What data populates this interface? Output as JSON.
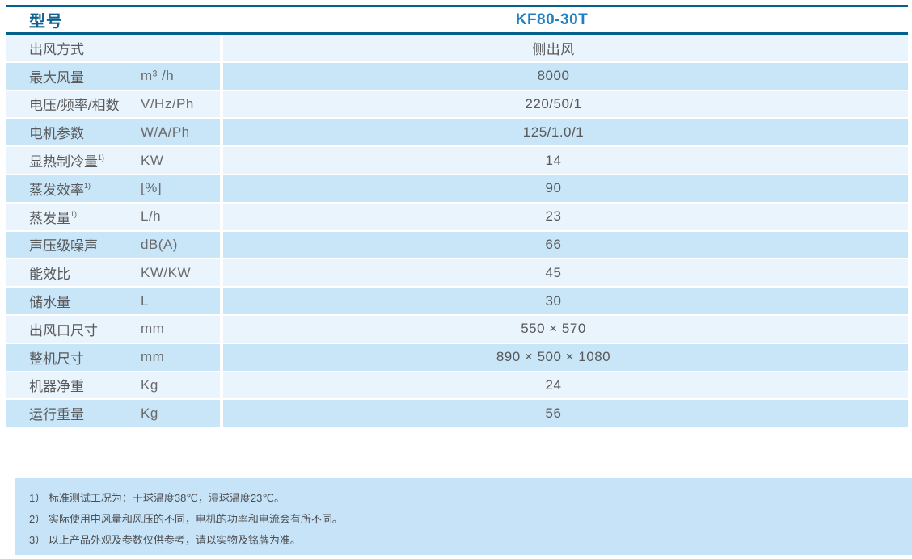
{
  "table": {
    "header": {
      "label": "型号",
      "model": "KF80-30T"
    },
    "rows": [
      {
        "label": "出风方式",
        "sup": "",
        "unit": "",
        "value": "侧出风"
      },
      {
        "label": "最大风量",
        "sup": "",
        "unit": "m³ /h",
        "value": "8000"
      },
      {
        "label": "电压/频率/相数",
        "sup": "",
        "unit": "V/Hz/Ph",
        "value": "220/50/1"
      },
      {
        "label": "电机参数",
        "sup": "",
        "unit": "W/A/Ph",
        "value": "125/1.0/1"
      },
      {
        "label": "显热制冷量",
        "sup": "1)",
        "unit": "KW",
        "value": "14"
      },
      {
        "label": "蒸发效率",
        "sup": "1)",
        "unit": "[%]",
        "value": "90"
      },
      {
        "label": "蒸发量",
        "sup": "1)",
        "unit": "L/h",
        "value": "23"
      },
      {
        "label": "声压级噪声",
        "sup": "",
        "unit": "dB(A)",
        "value": "66"
      },
      {
        "label": "能效比",
        "sup": "",
        "unit": "KW/KW",
        "value": "45"
      },
      {
        "label": "储水量",
        "sup": "",
        "unit": "L",
        "value": "30"
      },
      {
        "label": "出风口尺寸",
        "sup": "",
        "unit": "mm",
        "value": "550 × 570"
      },
      {
        "label": "整机尺寸",
        "sup": "",
        "unit": "mm",
        "value": "890 × 500 × 1080"
      },
      {
        "label": "机器净重",
        "sup": "",
        "unit": "Kg",
        "value": "24"
      },
      {
        "label": "运行重量",
        "sup": "",
        "unit": "Kg",
        "value": "56"
      }
    ]
  },
  "notes": {
    "line1": "1） 标准测试工况为：干球温度38℃，湿球温度23℃。",
    "line2": "2） 实际使用中风量和风压的不同，电机的功率和电流会有所不同。",
    "line3": "3） 以上产品外观及参数仅供参考，请以实物及铭牌为准。"
  },
  "colors": {
    "border-blue": "#04608c",
    "header-label": "#11618f",
    "model-blue": "#1e80c0",
    "row-light": "#eaf4fc",
    "row-dark": "#c9e6f8",
    "notes-bg": "#c6e3f7",
    "label-text": "#58595b",
    "unit-text": "#6a6b6d",
    "value-text": "#58595b",
    "notes-text": "#4d4e50"
  }
}
